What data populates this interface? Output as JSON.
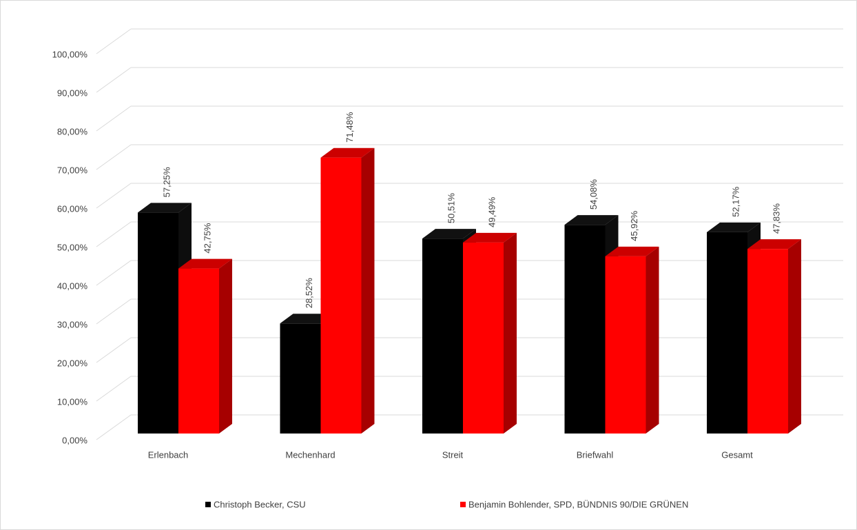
{
  "chart_data": {
    "type": "bar3d",
    "categories": [
      "Erlenbach",
      "Mechenhard",
      "Streit",
      "Briefwahl",
      "Gesamt"
    ],
    "series": [
      {
        "name": "Christoph Becker, CSU",
        "color": "#000000",
        "values": [
          57.25,
          28.52,
          50.51,
          54.08,
          52.17
        ],
        "value_labels": [
          "57,25%",
          "28,52%",
          "50,51%",
          "54,08%",
          "52,17%"
        ]
      },
      {
        "name": "Benjamin Bohlender, SPD, BÜNDNIS 90/DIE GRÜNEN",
        "color": "#ff0000",
        "values": [
          42.75,
          71.48,
          49.49,
          45.92,
          47.83
        ],
        "value_labels": [
          "42,75%",
          "71,48%",
          "49,49%",
          "45,92%",
          "47,83%"
        ]
      }
    ],
    "ylim": [
      0,
      100
    ],
    "yticks": [
      {
        "value": 0,
        "label": "0,00%"
      },
      {
        "value": 10,
        "label": "10,00%"
      },
      {
        "value": 20,
        "label": "20,00%"
      },
      {
        "value": 30,
        "label": "30,00%"
      },
      {
        "value": 40,
        "label": "40,00%"
      },
      {
        "value": 50,
        "label": "50,00%"
      },
      {
        "value": 60,
        "label": "60,00%"
      },
      {
        "value": 70,
        "label": "70,00%"
      },
      {
        "value": 80,
        "label": "80,00%"
      },
      {
        "value": 90,
        "label": "90,00%"
      },
      {
        "value": 100,
        "label": "100,00%"
      }
    ],
    "grid": true
  }
}
